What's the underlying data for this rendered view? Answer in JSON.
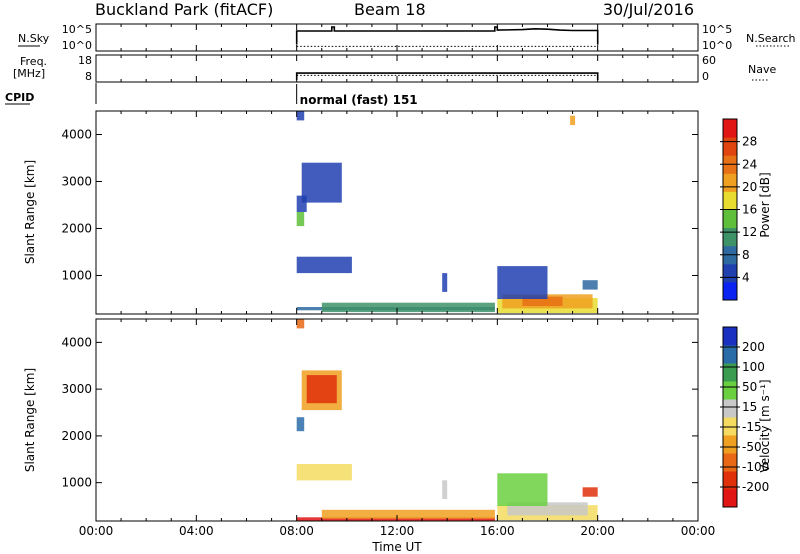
{
  "header": {
    "station": "Buckland Park (fitACF)",
    "beam": "Beam 18",
    "date": "30/Jul/2016"
  },
  "chart_data": [
    {
      "type": "line",
      "panel": "noise",
      "left_label": "N.Sky",
      "right_label": "N.Search",
      "left_ticks": [
        "10^5",
        "10^0"
      ],
      "right_ticks": [
        "10^5",
        "10^0"
      ],
      "scale": "log",
      "series": [
        {
          "style": "solid",
          "x": [
            0,
            8,
            8,
            9.4,
            9.4,
            9.5,
            9.5,
            15.9,
            15.9,
            16.0,
            16.0,
            17.0,
            17.5,
            18.0,
            18.5,
            19.0,
            20.0,
            20.0
          ],
          "y": [
            null,
            0.2,
            0.82,
            0.82,
            1.0,
            1.0,
            0.82,
            0.82,
            1.0,
            1.0,
            0.86,
            0.88,
            0.92,
            0.9,
            0.86,
            0.84,
            0.84,
            0.2
          ]
        },
        {
          "style": "dotted",
          "x": [
            8,
            20
          ],
          "y": [
            0.12,
            0.12
          ]
        }
      ]
    },
    {
      "type": "line",
      "panel": "frequency",
      "left_label_1": "Freq.",
      "left_label_2": "[MHz]",
      "right_label": "Nave",
      "left_ticks": [
        "18",
        "8"
      ],
      "right_ticks": [
        "60",
        "0"
      ],
      "series": [
        {
          "style": "solid",
          "x": [
            8,
            8,
            20,
            20
          ],
          "y": [
            0,
            0.3,
            0.3,
            0
          ]
        },
        {
          "style": "dotted",
          "x": [
            8,
            20
          ],
          "y": [
            0.2,
            0.2
          ]
        }
      ]
    },
    {
      "type": "annotation",
      "panel": "cpid",
      "label": "CPID",
      "text": "normal (fast) 151",
      "start_hour": 8
    },
    {
      "type": "heatmap",
      "panel": "power",
      "ylabel": "Slant Range [km]",
      "ylim": [
        180,
        4500
      ],
      "y_ticks": [
        1000,
        2000,
        3000,
        4000
      ],
      "colorbar_label": "Power [dB]",
      "colorbar_ticks": [
        "4",
        "8",
        "12",
        "16",
        "20",
        "24",
        "28"
      ],
      "colorbar_colors": [
        "#0a23f0",
        "#2040b0",
        "#2e6aa0",
        "#3e9268",
        "#5fbf3a",
        "#e8dc30",
        "#f0a020",
        "#e87015",
        "#e04510",
        "#e21515"
      ],
      "patches": [
        {
          "x": [
            8.0,
            8.3
          ],
          "y": [
            2050,
            2350
          ],
          "level": 4
        },
        {
          "x": [
            8.0,
            8.4
          ],
          "y": [
            2350,
            2700
          ],
          "level": 1
        },
        {
          "x": [
            8.2,
            9.8
          ],
          "y": [
            2550,
            3400
          ],
          "level": 1
        },
        {
          "x": [
            8.0,
            10.2
          ],
          "y": [
            1050,
            1400
          ],
          "level": 1
        },
        {
          "x": [
            8.0,
            8.3
          ],
          "y": [
            4300,
            4500
          ],
          "level": 1
        },
        {
          "x": [
            8.0,
            15.9
          ],
          "y": [
            260,
            330
          ],
          "level": 2
        },
        {
          "x": [
            9.0,
            15.9
          ],
          "y": [
            220,
            420
          ],
          "level": 3
        },
        {
          "x": [
            16.0,
            20.0
          ],
          "y": [
            200,
            520
          ],
          "level": 5
        },
        {
          "x": [
            16.2,
            19.8
          ],
          "y": [
            300,
            600
          ],
          "level": 6
        },
        {
          "x": [
            17.0,
            18.6
          ],
          "y": [
            350,
            550
          ],
          "level": 7
        },
        {
          "x": [
            16.0,
            18.0
          ],
          "y": [
            500,
            1200
          ],
          "level": 1
        },
        {
          "x": [
            19.4,
            20.0
          ],
          "y": [
            700,
            900
          ],
          "level": 2
        },
        {
          "x": [
            13.8,
            14.0
          ],
          "y": [
            650,
            1050
          ],
          "level": 1
        },
        {
          "x": [
            18.9,
            19.1
          ],
          "y": [
            4200,
            4400
          ],
          "level": 6
        }
      ]
    },
    {
      "type": "heatmap",
      "panel": "velocity",
      "ylabel": "Slant Range [km]",
      "ylim": [
        180,
        4500
      ],
      "y_ticks": [
        1000,
        2000,
        3000,
        4000
      ],
      "colorbar_label": "Velocity [m s⁻¹]",
      "colorbar_ticks": [
        "-200",
        "-100",
        "-50",
        "-15",
        "15",
        "50",
        "100",
        "200"
      ],
      "colorbar_colors": [
        "#e21515",
        "#e0300a",
        "#e86815",
        "#f0a020",
        "#f5dc60",
        "#c8c8c8",
        "#6ad040",
        "#3a9c50",
        "#2a6ca8",
        "#1a30c0"
      ],
      "patches": [
        {
          "x": [
            8.0,
            8.3
          ],
          "y": [
            2100,
            2400
          ],
          "level": 8
        },
        {
          "x": [
            8.2,
            9.8
          ],
          "y": [
            2550,
            3400
          ],
          "level": 3
        },
        {
          "x": [
            8.4,
            9.6
          ],
          "y": [
            2700,
            3300
          ],
          "level": 1
        },
        {
          "x": [
            8.0,
            10.2
          ],
          "y": [
            1050,
            1400
          ],
          "level": 4
        },
        {
          "x": [
            8.0,
            8.3
          ],
          "y": [
            4300,
            4500
          ],
          "level": 2
        },
        {
          "x": [
            8.0,
            15.9
          ],
          "y": [
            190,
            260
          ],
          "level": 0
        },
        {
          "x": [
            9.0,
            15.9
          ],
          "y": [
            230,
            420
          ],
          "level": 3
        },
        {
          "x": [
            16.0,
            20.0
          ],
          "y": [
            200,
            520
          ],
          "level": 4
        },
        {
          "x": [
            16.4,
            19.6
          ],
          "y": [
            300,
            580
          ],
          "level": 5
        },
        {
          "x": [
            16.0,
            18.0
          ],
          "y": [
            500,
            1200
          ],
          "level": 6
        },
        {
          "x": [
            19.4,
            20.0
          ],
          "y": [
            700,
            900
          ],
          "level": 1
        },
        {
          "x": [
            13.8,
            14.0
          ],
          "y": [
            650,
            1050
          ],
          "level": 5
        }
      ]
    }
  ],
  "x_axis": {
    "label": "Time UT",
    "ticks": [
      "00:00",
      "04:00",
      "08:00",
      "12:00",
      "16:00",
      "20:00",
      "00:00"
    ],
    "tick_hours": [
      0,
      4,
      8,
      12,
      16,
      20,
      24
    ],
    "data_gap_hours": [
      15.9,
      16.0
    ]
  }
}
